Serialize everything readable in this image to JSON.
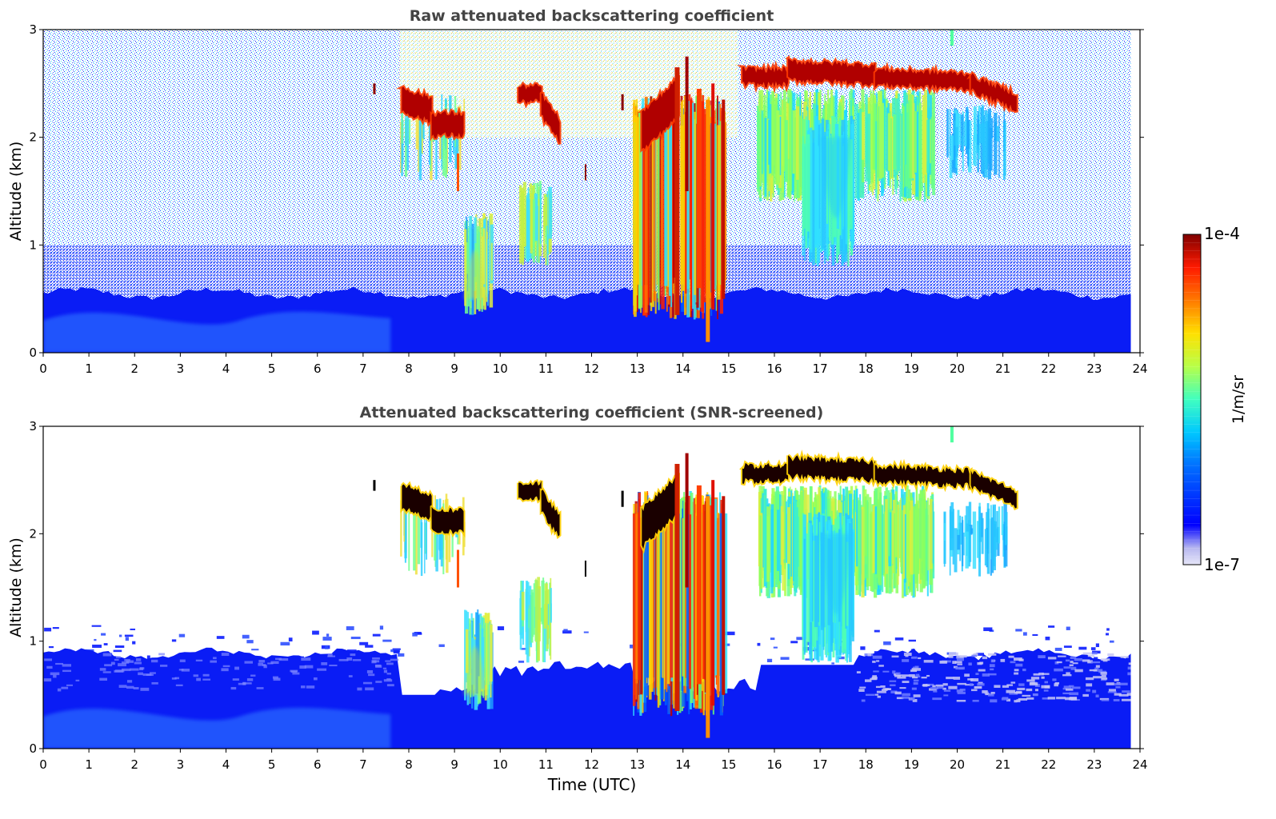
{
  "figure": {
    "xlabel": "Time (UTC)",
    "colorbar": {
      "label": "1/m/sr",
      "max_label": "1e-4",
      "min_label": "1e-7",
      "scale": "log",
      "colormap": "jet",
      "min": 1e-07,
      "max": 0.0001
    }
  },
  "chart_data": [
    {
      "type": "heatmap",
      "title": "Raw attenuated backscattering coefficient",
      "ylabel": "Altitude (km)",
      "xlim": [
        0,
        24
      ],
      "ylim": [
        0,
        3
      ],
      "xticks": [
        "0",
        "1",
        "2",
        "3",
        "4",
        "5",
        "6",
        "7",
        "8",
        "9",
        "10",
        "11",
        "12",
        "13",
        "14",
        "15",
        "16",
        "17",
        "18",
        "19",
        "20",
        "21",
        "22",
        "23",
        "24"
      ],
      "yticks": [
        "0",
        "1",
        "2",
        "3"
      ],
      "features": [
        {
          "name": "boundary layer",
          "t": [
            0,
            24
          ],
          "top_km": 0.6,
          "level": "low"
        },
        {
          "name": "cloud",
          "t": [
            7.8,
            9.2
          ],
          "alt_km": [
            2.0,
            2.5
          ],
          "level": "high"
        },
        {
          "name": "cloud",
          "t": [
            10.4,
            11.3
          ],
          "alt_km": [
            2.0,
            2.5
          ],
          "level": "high"
        },
        {
          "name": "cloud",
          "t": [
            12.9,
            14.9
          ],
          "alt_km": [
            0.3,
            2.6
          ],
          "level": "high"
        },
        {
          "name": "cloud",
          "t": [
            15.3,
            21.3
          ],
          "alt_km": [
            2.3,
            2.7
          ],
          "level": "high"
        },
        {
          "name": "precipitation",
          "t": [
            15.6,
            19.5
          ],
          "alt_km": [
            0.8,
            2.5
          ],
          "level": "mid"
        }
      ]
    },
    {
      "type": "heatmap",
      "title": "Attenuated backscattering coefficient (SNR-screened)",
      "ylabel": "Altitude (km)",
      "xlim": [
        0,
        24
      ],
      "ylim": [
        0,
        3
      ],
      "xticks": [
        "0",
        "1",
        "2",
        "3",
        "4",
        "5",
        "6",
        "7",
        "8",
        "9",
        "10",
        "11",
        "12",
        "13",
        "14",
        "15",
        "16",
        "17",
        "18",
        "19",
        "20",
        "21",
        "22",
        "23",
        "24"
      ],
      "yticks": [
        "0",
        "1",
        "2",
        "3"
      ],
      "features": [
        {
          "name": "boundary layer",
          "t": [
            0,
            24
          ],
          "top_km": 0.9,
          "level": "low"
        },
        {
          "name": "cloud",
          "t": [
            7.8,
            9.2
          ],
          "alt_km": [
            2.0,
            2.5
          ],
          "level": "saturated"
        },
        {
          "name": "cloud",
          "t": [
            10.4,
            11.3
          ],
          "alt_km": [
            2.0,
            2.5
          ],
          "level": "saturated"
        },
        {
          "name": "cloud",
          "t": [
            12.9,
            14.9
          ],
          "alt_km": [
            0.3,
            2.6
          ],
          "level": "high"
        },
        {
          "name": "cloud",
          "t": [
            15.3,
            21.3
          ],
          "alt_km": [
            2.3,
            2.8
          ],
          "level": "saturated"
        },
        {
          "name": "precipitation",
          "t": [
            15.6,
            19.5
          ],
          "alt_km": [
            0.8,
            2.5
          ],
          "level": "mid"
        }
      ]
    }
  ]
}
